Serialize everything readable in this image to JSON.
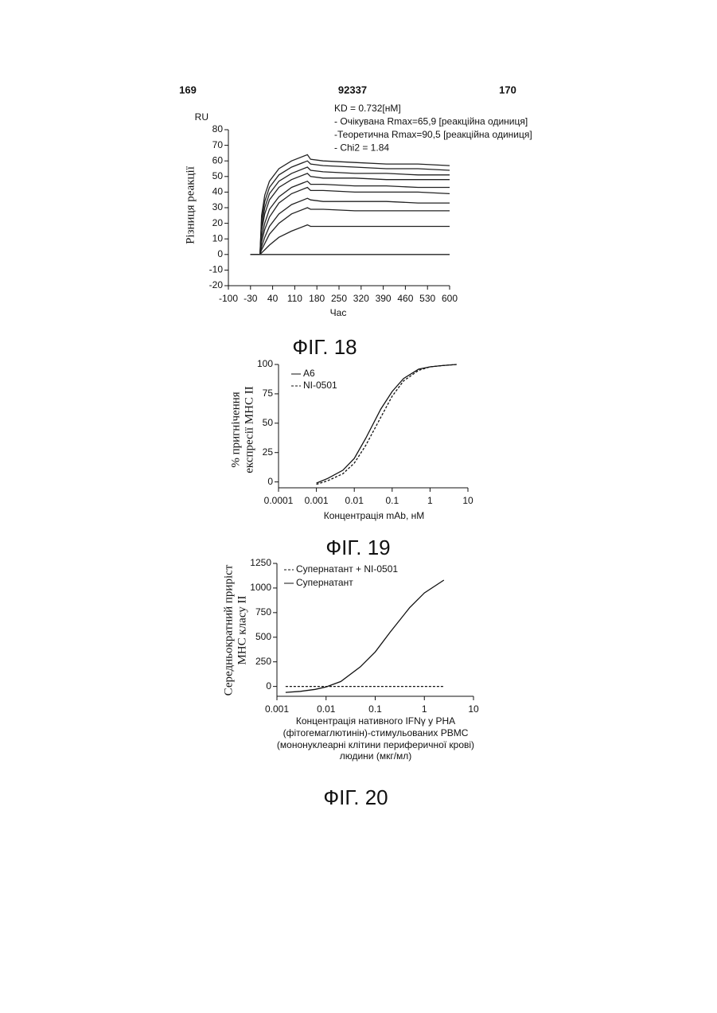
{
  "header": {
    "left": "169",
    "center": "92337",
    "right": "170"
  },
  "chart_data": [
    {
      "type": "line",
      "caption": "ФІГ. 18",
      "yunit": "RU",
      "ylabel": "Різниця реакції",
      "xlabel": "Час",
      "annotations": [
        "KD = 0.732[нМ]",
        "- Очікувана Rmax=65,9 [реакційна одиниця]",
        "-Теоретична Rmax=90,5 [реакційна одиниця]",
        "- Chi2 = 1.84"
      ],
      "xlim": [
        -100,
        600
      ],
      "xticks": [
        -100,
        -30,
        40,
        110,
        180,
        250,
        320,
        390,
        460,
        530,
        600
      ],
      "ylim": [
        -20,
        80
      ],
      "yticks": [
        -20,
        -10,
        0,
        10,
        20,
        30,
        40,
        50,
        60,
        70,
        80
      ],
      "x": [
        -30,
        0,
        5,
        15,
        30,
        60,
        100,
        150,
        160,
        200,
        300,
        400,
        500,
        600
      ],
      "series": [
        {
          "color": "#222",
          "linestyle": "solid",
          "values": [
            0,
            0,
            25,
            38,
            47,
            55,
            60,
            64,
            61,
            60,
            59,
            58,
            58,
            57
          ]
        },
        {
          "color": "#222",
          "linestyle": "solid",
          "values": [
            0,
            0,
            22,
            34,
            43,
            51,
            56,
            60,
            58,
            57,
            56,
            55,
            55,
            54
          ]
        },
        {
          "color": "#222",
          "linestyle": "solid",
          "values": [
            0,
            0,
            18,
            30,
            39,
            47,
            52,
            56,
            54,
            53,
            52,
            52,
            51,
            51
          ]
        },
        {
          "color": "#222",
          "linestyle": "solid",
          "values": [
            0,
            0,
            15,
            26,
            35,
            43,
            48,
            52,
            50,
            49,
            49,
            48,
            48,
            48
          ]
        },
        {
          "color": "#222",
          "linestyle": "solid",
          "values": [
            0,
            0,
            11,
            20,
            29,
            37,
            43,
            47,
            45,
            45,
            44,
            44,
            43,
            43
          ]
        },
        {
          "color": "#222",
          "linestyle": "solid",
          "values": [
            0,
            0,
            8,
            16,
            24,
            33,
            39,
            43,
            41,
            41,
            40,
            40,
            40,
            39
          ]
        },
        {
          "color": "#222",
          "linestyle": "solid",
          "values": [
            0,
            0,
            5,
            11,
            18,
            26,
            32,
            36,
            35,
            34,
            34,
            34,
            33,
            33
          ]
        },
        {
          "color": "#222",
          "linestyle": "solid",
          "values": [
            0,
            0,
            3,
            7,
            13,
            20,
            26,
            30,
            29,
            29,
            28,
            28,
            28,
            28
          ]
        },
        {
          "color": "#222",
          "linestyle": "solid",
          "values": [
            0,
            0,
            1,
            3,
            6,
            11,
            15,
            19,
            18,
            18,
            18,
            18,
            18,
            18
          ]
        },
        {
          "color": "#222",
          "linestyle": "solid",
          "values": [
            0,
            0,
            0,
            0,
            0,
            0,
            0,
            0,
            0,
            0,
            0,
            0,
            0,
            0
          ]
        }
      ]
    },
    {
      "type": "line",
      "caption": "ФІГ. 19",
      "ylabel": [
        "% пригнічення",
        "експресії МНС ІІ"
      ],
      "xlabel": "Концентрація mAb, нМ",
      "xscale": "log",
      "legend": "upper left",
      "xlim": [
        0.0001,
        10
      ],
      "xticks": [
        0.0001,
        0.001,
        0.01,
        0.1,
        1,
        10
      ],
      "ylim": [
        -5,
        100
      ],
      "yticks": [
        0,
        25,
        50,
        75,
        100
      ],
      "x": [
        0.001,
        0.002,
        0.005,
        0.01,
        0.02,
        0.05,
        0.1,
        0.2,
        0.5,
        1,
        2,
        5
      ],
      "series": [
        {
          "name": "A6",
          "color": "#111",
          "linestyle": "solid",
          "values": [
            -1,
            3,
            10,
            20,
            37,
            62,
            77,
            88,
            96,
            98,
            99,
            100
          ]
        },
        {
          "name": "NI-0501",
          "color": "#111",
          "linestyle": "dashed",
          "values": [
            -2,
            1,
            7,
            16,
            31,
            55,
            73,
            86,
            95,
            98,
            99,
            100
          ]
        }
      ]
    },
    {
      "type": "line",
      "caption": "ФІГ. 20",
      "ylabel": [
        "Середньократний приріст",
        "МНС класу ІІ"
      ],
      "xlabel": [
        "Концентрація нативного IFNγ у PHA",
        "(фітогемаглютинін)-стимульованих PBMC",
        "(мононуклеарні клітини периферичної крові)",
        "людини (мкг/мл)"
      ],
      "xscale": "log",
      "legend": "upper left",
      "xlim": [
        0.001,
        10
      ],
      "xticks": [
        0.001,
        0.01,
        0.1,
        1,
        10
      ],
      "ylim": [
        -100,
        1250
      ],
      "yticks": [
        0,
        250,
        500,
        750,
        1000,
        1250
      ],
      "x": [
        0.0015,
        0.003,
        0.006,
        0.01,
        0.02,
        0.05,
        0.1,
        0.2,
        0.5,
        1,
        2.5
      ],
      "series": [
        {
          "name": "Супернатант + NI-0501",
          "color": "#111",
          "linestyle": "dashed",
          "values": [
            0,
            0,
            0,
            0,
            0,
            0,
            0,
            0,
            0,
            0,
            0
          ]
        },
        {
          "name": "Супернатант",
          "color": "#111",
          "linestyle": "solid",
          "values": [
            -60,
            -50,
            -30,
            -5,
            50,
            200,
            350,
            550,
            800,
            950,
            1080
          ]
        }
      ]
    }
  ]
}
